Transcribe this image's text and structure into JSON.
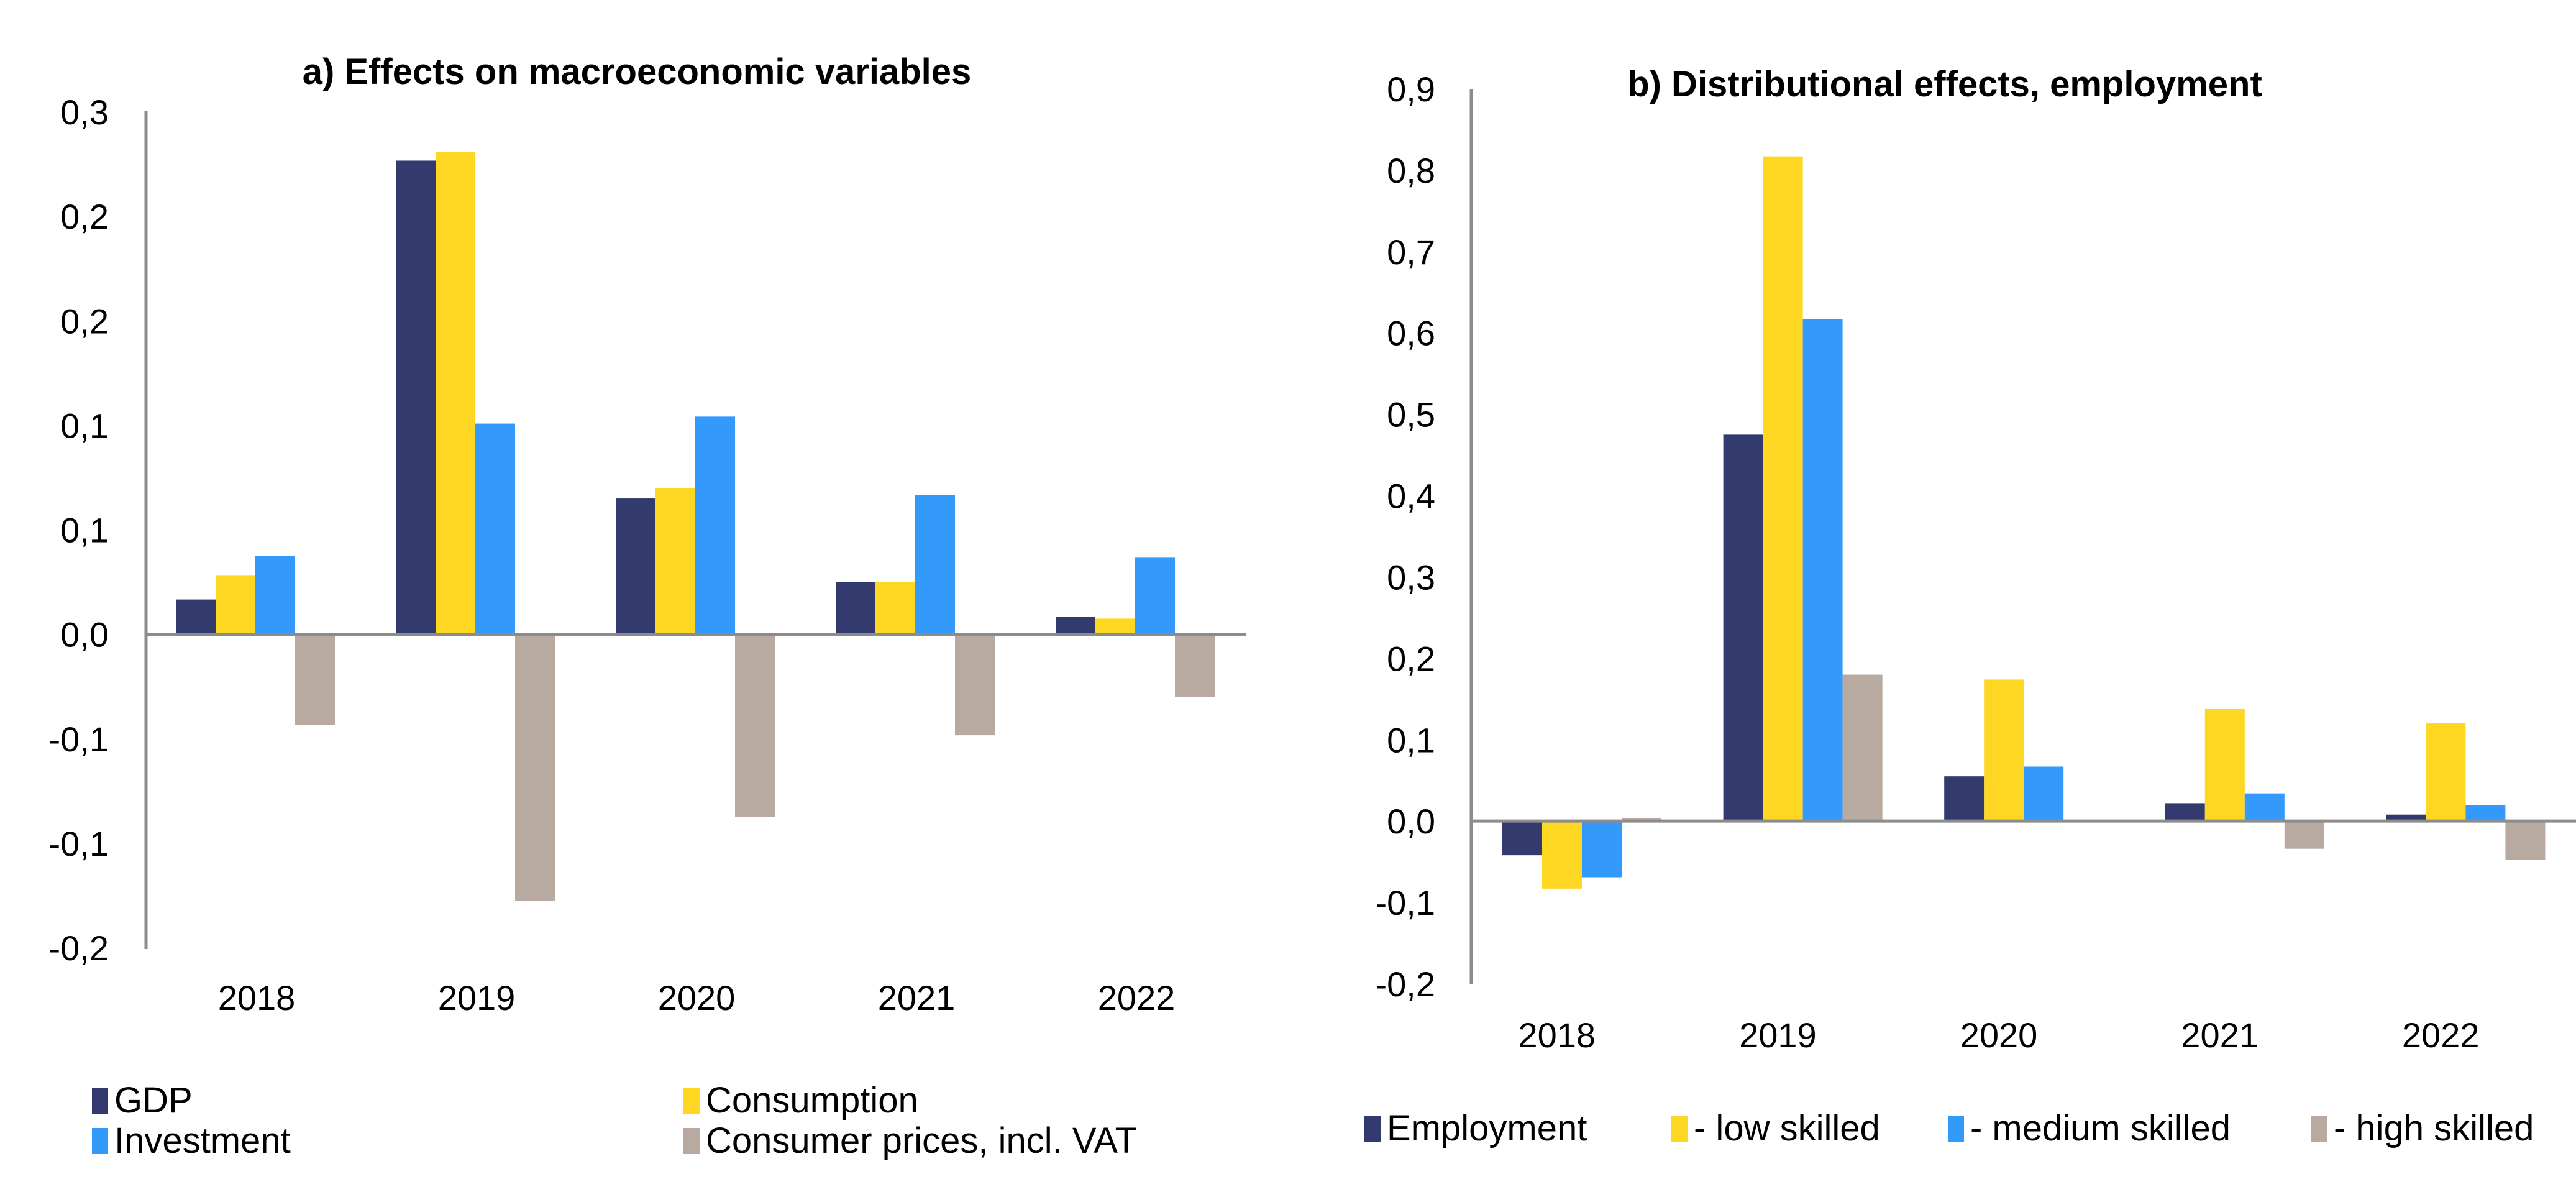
{
  "chart_data": [
    {
      "type": "bar",
      "title": "a) Effects on macroeconomic variables",
      "xlabel": "",
      "ylabel": "",
      "categories": [
        "2018",
        "2019",
        "2020",
        "2021",
        "2022"
      ],
      "ylim": [
        -0.18,
        0.3
      ],
      "yticks": [
        0.3,
        0.24,
        0.18,
        0.12,
        0.06,
        0.0,
        -0.06,
        -0.12,
        -0.18
      ],
      "ytick_labels": [
        "0,3",
        "0,2",
        "0,2",
        "0,1",
        "0,1",
        "0,0",
        "-0,1",
        "-0,1",
        "-0,2"
      ],
      "grid": false,
      "legend_position": "bottom",
      "series": [
        {
          "name": "GDP",
          "color": "#333a6e",
          "values": [
            0.02,
            0.272,
            0.078,
            0.03,
            0.01
          ]
        },
        {
          "name": "Consumption",
          "color": "#fdd722",
          "values": [
            0.034,
            0.277,
            0.084,
            0.03,
            0.009
          ]
        },
        {
          "name": "Investment",
          "color": "#339afc",
          "values": [
            0.045,
            0.121,
            0.125,
            0.08,
            0.044
          ]
        },
        {
          "name": "Consumer prices, incl. VAT",
          "color": "#b8aaa1",
          "values": [
            -0.052,
            -0.153,
            -0.105,
            -0.058,
            -0.036
          ]
        }
      ]
    },
    {
      "type": "bar",
      "title": "b) Distributional effects, employment",
      "xlabel": "",
      "ylabel": "",
      "categories": [
        "2018",
        "2019",
        "2020",
        "2021",
        "2022"
      ],
      "ylim": [
        -0.2,
        0.9
      ],
      "yticks": [
        0.9,
        0.8,
        0.7,
        0.6,
        0.5,
        0.4,
        0.3,
        0.2,
        0.1,
        0.0,
        -0.1,
        -0.2
      ],
      "ytick_labels": [
        "0,9",
        "0,8",
        "0,7",
        "0,6",
        "0,5",
        "0,4",
        "0,3",
        "0,2",
        "0,1",
        "0,0",
        "-0,1",
        "-0,2"
      ],
      "grid": false,
      "legend_position": "bottom",
      "series": [
        {
          "name": "Employment",
          "color": "#333a6e",
          "values": [
            -0.042,
            0.475,
            0.055,
            0.022,
            0.008
          ]
        },
        {
          "name": "- low skilled",
          "color": "#fdd722",
          "values": [
            -0.083,
            0.817,
            0.174,
            0.138,
            0.12
          ]
        },
        {
          "name": "- medium skilled",
          "color": "#339afc",
          "values": [
            -0.069,
            0.617,
            0.067,
            0.034,
            0.02
          ]
        },
        {
          "name": "- high skilled",
          "color": "#b8aaa1",
          "values": [
            0.004,
            0.18,
            0.0,
            -0.034,
            -0.048
          ]
        }
      ]
    }
  ]
}
